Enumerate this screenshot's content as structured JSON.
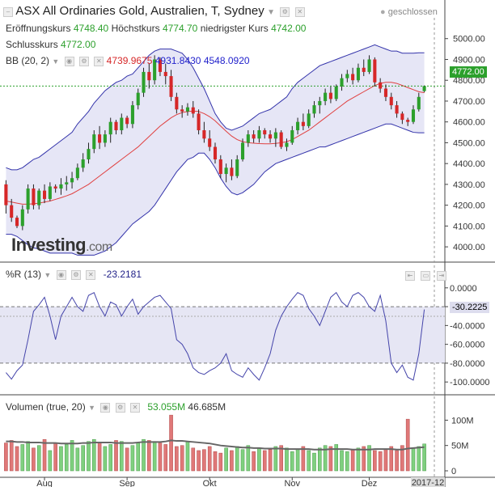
{
  "header": {
    "title": "ASX All Ordinaries Gold, Australien, T, Sydney",
    "status": "geschlossen",
    "open_label": "Eröffnungskurs",
    "open_value": "4748.40",
    "high_label": "Höchstkurs",
    "high_value": "4774.70",
    "low_label": "niedrigster Kurs",
    "low_value": "4742.00",
    "close_label": "Schlusskurs",
    "close_value": "4772.00",
    "bb_label": "BB (20, 2)",
    "bb_mid": "4739.9675",
    "bb_upper": "4931.8430",
    "bb_lower": "4548.0920"
  },
  "wr": {
    "label": "%R (13)",
    "value": "-23.2181",
    "badge": "-30.2225"
  },
  "vol": {
    "label": "Volumen (true, 20)",
    "value": "53.055M",
    "avg": "46.685M"
  },
  "price_badge": "4772.00",
  "logo": {
    "main": "Investing",
    "suffix": ".com"
  },
  "colors": {
    "up": "#2ca02c",
    "down": "#d62728",
    "band": "#3333aa",
    "ma": "#e04040",
    "wr": "#4444aa"
  },
  "x_ticks": [
    "Aug",
    "Sep",
    "Okt",
    "Nov",
    "Dez",
    "2017-12"
  ],
  "chart_data": [
    {
      "type": "candlestick",
      "title": "ASX All Ordinaries Gold",
      "ylim": [
        3950,
        5100
      ],
      "yticks": [
        4000,
        4100,
        4200,
        4300,
        4400,
        4500,
        4600,
        4700,
        4800,
        4900,
        5000
      ],
      "ohlc": [
        [
          4300,
          4320,
          4160,
          4200
        ],
        [
          4200,
          4230,
          4120,
          4140
        ],
        [
          4140,
          4150,
          4090,
          4100
        ],
        [
          4100,
          4200,
          4080,
          4180
        ],
        [
          4180,
          4300,
          4160,
          4280
        ],
        [
          4280,
          4300,
          4180,
          4200
        ],
        [
          4200,
          4280,
          4180,
          4270
        ],
        [
          4270,
          4300,
          4210,
          4230
        ],
        [
          4230,
          4310,
          4220,
          4290
        ],
        [
          4290,
          4300,
          4260,
          4280
        ],
        [
          4280,
          4330,
          4250,
          4300
        ],
        [
          4300,
          4340,
          4270,
          4310
        ],
        [
          4310,
          4360,
          4280,
          4330
        ],
        [
          4330,
          4400,
          4320,
          4380
        ],
        [
          4380,
          4450,
          4360,
          4420
        ],
        [
          4420,
          4500,
          4400,
          4470
        ],
        [
          4470,
          4560,
          4450,
          4540
        ],
        [
          4540,
          4580,
          4470,
          4500
        ],
        [
          4500,
          4560,
          4480,
          4540
        ],
        [
          4540,
          4620,
          4500,
          4600
        ],
        [
          4600,
          4610,
          4540,
          4560
        ],
        [
          4560,
          4640,
          4540,
          4620
        ],
        [
          4620,
          4630,
          4570,
          4590
        ],
        [
          4590,
          4700,
          4570,
          4680
        ],
        [
          4680,
          4760,
          4660,
          4740
        ],
        [
          4740,
          4860,
          4720,
          4840
        ],
        [
          4840,
          4880,
          4760,
          4800
        ],
        [
          4800,
          4920,
          4780,
          4900
        ],
        [
          4900,
          4910,
          4820,
          4840
        ],
        [
          4840,
          4880,
          4780,
          4820
        ],
        [
          4820,
          4850,
          4700,
          4720
        ],
        [
          4720,
          4740,
          4640,
          4660
        ],
        [
          4660,
          4680,
          4620,
          4650
        ],
        [
          4650,
          4690,
          4630,
          4670
        ],
        [
          4670,
          4700,
          4620,
          4640
        ],
        [
          4640,
          4660,
          4540,
          4560
        ],
        [
          4560,
          4600,
          4500,
          4520
        ],
        [
          4520,
          4560,
          4460,
          4480
        ],
        [
          4480,
          4500,
          4400,
          4420
        ],
        [
          4420,
          4440,
          4330,
          4350
        ],
        [
          4350,
          4400,
          4310,
          4380
        ],
        [
          4380,
          4420,
          4320,
          4340
        ],
        [
          4340,
          4440,
          4330,
          4420
        ],
        [
          4420,
          4520,
          4410,
          4500
        ],
        [
          4500,
          4560,
          4480,
          4540
        ],
        [
          4540,
          4560,
          4500,
          4520
        ],
        [
          4520,
          4580,
          4500,
          4560
        ],
        [
          4560,
          4570,
          4520,
          4540
        ],
        [
          4540,
          4560,
          4500,
          4520
        ],
        [
          4520,
          4570,
          4480,
          4550
        ],
        [
          4550,
          4560,
          4470,
          4480
        ],
        [
          4480,
          4520,
          4460,
          4500
        ],
        [
          4500,
          4580,
          4490,
          4560
        ],
        [
          4560,
          4620,
          4540,
          4600
        ],
        [
          4600,
          4640,
          4560,
          4580
        ],
        [
          4580,
          4660,
          4570,
          4640
        ],
        [
          4640,
          4700,
          4620,
          4680
        ],
        [
          4680,
          4720,
          4640,
          4700
        ],
        [
          4700,
          4760,
          4680,
          4740
        ],
        [
          4740,
          4770,
          4690,
          4710
        ],
        [
          4710,
          4780,
          4700,
          4770
        ],
        [
          4770,
          4830,
          4750,
          4810
        ],
        [
          4810,
          4850,
          4790,
          4830
        ],
        [
          4830,
          4860,
          4780,
          4800
        ],
        [
          4800,
          4880,
          4790,
          4860
        ],
        [
          4860,
          4900,
          4820,
          4840
        ],
        [
          4840,
          4920,
          4830,
          4900
        ],
        [
          4900,
          4910,
          4770,
          4790
        ],
        [
          4790,
          4810,
          4740,
          4760
        ],
        [
          4760,
          4780,
          4700,
          4720
        ],
        [
          4720,
          4740,
          4660,
          4680
        ],
        [
          4680,
          4700,
          4620,
          4640
        ],
        [
          4640,
          4650,
          4590,
          4610
        ],
        [
          4610,
          4620,
          4580,
          4600
        ],
        [
          4600,
          4680,
          4590,
          4660
        ],
        [
          4660,
          4740,
          4650,
          4720
        ],
        [
          4748,
          4775,
          4742,
          4772
        ]
      ],
      "bb_upper": [
        4380,
        4370,
        4370,
        4380,
        4400,
        4420,
        4430,
        4450,
        4470,
        4490,
        4510,
        4530,
        4550,
        4590,
        4620,
        4650,
        4690,
        4720,
        4750,
        4770,
        4790,
        4800,
        4820,
        4830,
        4860,
        4890,
        4920,
        4940,
        4950,
        4950,
        4950,
        4940,
        4930,
        4900,
        4860,
        4810,
        4760,
        4700,
        4640,
        4600,
        4570,
        4560,
        4570,
        4580,
        4600,
        4620,
        4640,
        4650,
        4660,
        4680,
        4700,
        4720,
        4760,
        4790,
        4810,
        4830,
        4850,
        4870,
        4880,
        4890,
        4900,
        4910,
        4920,
        4930,
        4940,
        4950,
        4960,
        4970,
        4960,
        4950,
        4940,
        4940,
        4930,
        4930,
        4930,
        4932,
        4932
      ],
      "bb_mid": [
        4220,
        4215,
        4210,
        4205,
        4205,
        4207,
        4210,
        4215,
        4220,
        4228,
        4236,
        4245,
        4255,
        4270,
        4285,
        4300,
        4320,
        4340,
        4360,
        4380,
        4400,
        4420,
        4440,
        4460,
        4480,
        4505,
        4530,
        4555,
        4580,
        4600,
        4620,
        4635,
        4645,
        4650,
        4652,
        4650,
        4640,
        4625,
        4605,
        4580,
        4555,
        4532,
        4515,
        4505,
        4500,
        4498,
        4496,
        4495,
        4495,
        4497,
        4500,
        4505,
        4515,
        4530,
        4545,
        4560,
        4580,
        4600,
        4620,
        4640,
        4660,
        4680,
        4700,
        4715,
        4730,
        4745,
        4760,
        4775,
        4785,
        4790,
        4790,
        4785,
        4775,
        4765,
        4755,
        4745,
        4740
      ],
      "bb_lower": [
        4060,
        4060,
        4050,
        4030,
        4010,
        3995,
        3990,
        3980,
        3970,
        3970,
        3970,
        3970,
        3970,
        3960,
        3960,
        3960,
        3960,
        3970,
        3980,
        4000,
        4020,
        4050,
        4080,
        4110,
        4130,
        4150,
        4170,
        4200,
        4240,
        4280,
        4320,
        4360,
        4390,
        4420,
        4430,
        4450,
        4450,
        4420,
        4380,
        4330,
        4290,
        4260,
        4250,
        4260,
        4280,
        4300,
        4330,
        4360,
        4380,
        4400,
        4410,
        4420,
        4430,
        4440,
        4450,
        4460,
        4470,
        4480,
        4480,
        4490,
        4500,
        4510,
        4520,
        4530,
        4540,
        4550,
        4560,
        4570,
        4580,
        4590,
        4590,
        4580,
        4570,
        4560,
        4550,
        4548,
        4548
      ]
    },
    {
      "type": "line",
      "title": "%R (13)",
      "ylim": [
        -105,
        5
      ],
      "yticks": [
        0,
        -20,
        -40,
        -60,
        -80,
        -100
      ],
      "levels": [
        -20,
        -80
      ],
      "values": [
        -90,
        -97,
        -88,
        -82,
        -55,
        -25,
        -18,
        -10,
        -30,
        -55,
        -30,
        -20,
        -10,
        -20,
        -25,
        -8,
        -5,
        -20,
        -30,
        -15,
        -18,
        -30,
        -20,
        -12,
        -28,
        -20,
        -15,
        -10,
        -8,
        -15,
        -22,
        -55,
        -60,
        -70,
        -85,
        -90,
        -92,
        -88,
        -85,
        -80,
        -70,
        -88,
        -92,
        -95,
        -85,
        -92,
        -98,
        -85,
        -70,
        -45,
        -30,
        -20,
        -12,
        -5,
        -8,
        -22,
        -30,
        -40,
        -25,
        -10,
        -5,
        -15,
        -20,
        -8,
        -5,
        -10,
        -20,
        -25,
        -8,
        -35,
        -80,
        -90,
        -82,
        -95,
        -98,
        -70,
        -23
      ]
    },
    {
      "type": "bar",
      "title": "Volumen (true, 20)",
      "ylim": [
        0,
        115
      ],
      "yticks": [
        0,
        50,
        100
      ],
      "ytick_labels": [
        "0",
        "50M",
        "100M"
      ],
      "values": [
        55,
        60,
        48,
        52,
        58,
        45,
        50,
        62,
        40,
        55,
        48,
        52,
        60,
        45,
        50,
        58,
        62,
        55,
        48,
        52,
        60,
        58,
        45,
        50,
        55,
        62,
        60,
        58,
        55,
        52,
        110,
        48,
        50,
        58,
        45,
        40,
        42,
        48,
        38,
        35,
        45,
        40,
        48,
        42,
        50,
        38,
        45,
        40,
        42,
        48,
        50,
        45,
        38,
        42,
        48,
        40,
        35,
        45,
        50,
        48,
        52,
        40,
        38,
        42,
        45,
        48,
        50,
        40,
        38,
        42,
        48,
        40,
        50,
        102,
        45,
        48,
        53.055
      ],
      "avg": [
        58,
        58,
        57,
        57,
        56,
        56,
        56,
        55,
        55,
        55,
        54,
        54,
        54,
        54,
        55,
        55,
        56,
        56,
        56,
        56,
        55,
        55,
        55,
        55,
        56,
        57,
        57,
        57,
        57,
        58,
        60,
        59,
        59,
        58,
        57,
        56,
        55,
        54,
        52,
        50,
        49,
        48,
        47,
        46,
        46,
        45,
        45,
        44,
        44,
        44,
        44,
        43,
        43,
        43,
        43,
        43,
        42,
        42,
        42,
        43,
        43,
        43,
        43,
        42,
        42,
        42,
        42,
        43,
        43,
        43,
        43,
        42,
        42,
        44,
        45,
        46,
        46.685
      ]
    }
  ]
}
